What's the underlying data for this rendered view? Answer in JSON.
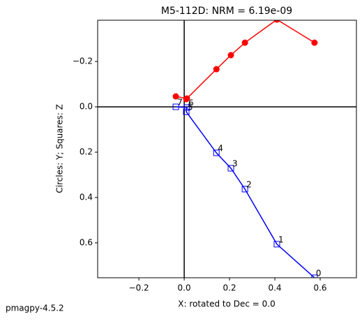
{
  "chart_data": {
    "type": "zijderveld",
    "title": "M5-112D: NRM =  6.19e-09",
    "xlabel": "X: rotated to Dec =     0.0",
    "ylabel": "Circles: Y; Squares: Z",
    "footer": "pmagpy-4.5.2",
    "x": [
      0.575,
      0.409,
      0.268,
      0.206,
      0.142,
      0.009,
      0.012,
      -0.037
    ],
    "point_labels": [
      "0",
      "1",
      "2",
      "3",
      "4",
      "5",
      "6",
      "7"
    ],
    "series": [
      {
        "name": "Y",
        "color": "#ff0000",
        "marker": "circle",
        "values": [
          -0.283,
          -0.385,
          -0.283,
          -0.228,
          -0.166,
          -0.034,
          -0.037,
          -0.046
        ]
      },
      {
        "name": "Z",
        "color": "#0000ff",
        "marker": "square",
        "values": [
          0.754,
          0.606,
          0.363,
          0.271,
          0.203,
          0.022,
          0.003,
          0.0
        ]
      }
    ],
    "xlim": [
      -0.382,
      0.76
    ],
    "ylim": [
      0.754,
      -0.382
    ],
    "xticks": [
      {
        "value": -0.2,
        "label": "−0.2"
      },
      {
        "value": 0,
        "label": "0.0"
      },
      0.2,
      0.4,
      0.6
    ],
    "yticks": [
      {
        "value": -0.2,
        "label": "−0.2"
      },
      {
        "value": 0,
        "label": "0.0"
      },
      0.2,
      0.4,
      0.6
    ]
  }
}
